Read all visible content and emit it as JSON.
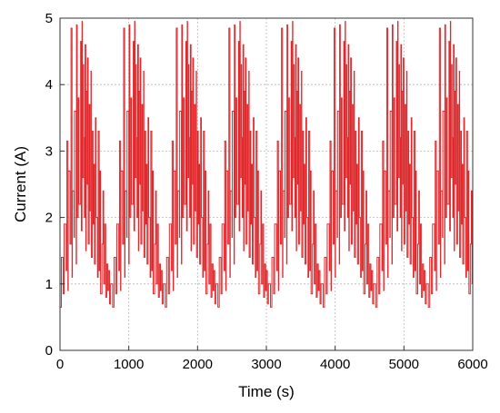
{
  "chart_data": {
    "type": "line",
    "title": "",
    "xlabel": "Time (s)",
    "ylabel": "Current (A)",
    "xlim": [
      0,
      6000
    ],
    "ylim": [
      0,
      5
    ],
    "x_ticks": [
      0,
      1000,
      2000,
      3000,
      4000,
      5000,
      6000
    ],
    "y_ticks": [
      0,
      1,
      2,
      3,
      4,
      5
    ],
    "x_tick_labels": [
      "0",
      "1000",
      "2000",
      "3000",
      "4000",
      "5000",
      "6000"
    ],
    "y_tick_labels": [
      "0",
      "1",
      "2",
      "3",
      "4",
      "5"
    ],
    "grid": true,
    "legend": "none",
    "line_color": "#e0292d",
    "cycle": {
      "period_s": 765,
      "x": [
        0,
        20,
        20,
        45,
        45,
        60,
        60,
        90,
        90,
        100,
        100,
        115,
        115,
        120,
        120,
        145,
        145,
        160,
        160,
        175,
        175,
        180,
        180,
        205,
        205,
        210,
        210,
        235,
        235,
        240,
        240,
        250,
        250,
        265,
        265,
        275,
        275,
        300,
        300,
        310,
        310,
        320,
        320,
        325,
        325,
        340,
        340,
        345,
        345,
        355,
        355,
        365,
        365,
        375,
        375,
        380,
        380,
        395,
        395,
        400,
        400,
        410,
        410,
        425,
        425,
        435,
        435,
        450,
        450,
        455,
        455,
        470,
        470,
        480,
        480,
        490,
        490,
        500,
        500,
        515,
        515,
        525,
        525,
        545,
        545,
        555,
        555,
        570,
        570,
        580,
        580,
        590,
        590,
        610,
        610,
        625,
        625,
        635,
        635,
        650,
        650,
        665,
        665,
        680,
        680,
        695,
        695,
        705,
        705,
        720,
        720,
        735,
        735,
        765
      ],
      "y": [
        0.65,
        0.65,
        1.4,
        1.4,
        0.85,
        0.85,
        1.9,
        1.9,
        1.2,
        1.2,
        3.15,
        3.15,
        0.9,
        0.9,
        2.7,
        2.7,
        1.6,
        1.6,
        4.85,
        4.85,
        1.1,
        1.1,
        2.4,
        2.4,
        1.7,
        1.7,
        3.6,
        3.6,
        1.3,
        1.3,
        4.9,
        4.9,
        2.0,
        2.0,
        3.8,
        3.8,
        2.2,
        2.2,
        4.65,
        4.65,
        1.8,
        1.8,
        4.95,
        4.95,
        2.6,
        2.6,
        4.3,
        4.3,
        3.2,
        3.2,
        2.0,
        2.0,
        4.6,
        4.6,
        1.5,
        1.5,
        3.9,
        3.9,
        2.5,
        2.5,
        4.4,
        4.4,
        1.6,
        1.6,
        3.7,
        3.7,
        2.1,
        2.1,
        4.2,
        4.2,
        1.4,
        1.4,
        3.3,
        3.3,
        1.9,
        1.9,
        2.8,
        2.8,
        1.3,
        1.3,
        3.5,
        3.5,
        2.0,
        2.0,
        1.1,
        1.1,
        3.3,
        3.3,
        1.2,
        1.2,
        2.7,
        2.7,
        0.85,
        0.85,
        1.6,
        1.6,
        2.4,
        2.4,
        1.0,
        1.0,
        1.9,
        1.9,
        0.8,
        0.8,
        1.3,
        1.3,
        0.9,
        0.9,
        1.2,
        1.2,
        0.7,
        0.7,
        1.0,
        1.0
      ]
    },
    "duration_s": 6000
  }
}
